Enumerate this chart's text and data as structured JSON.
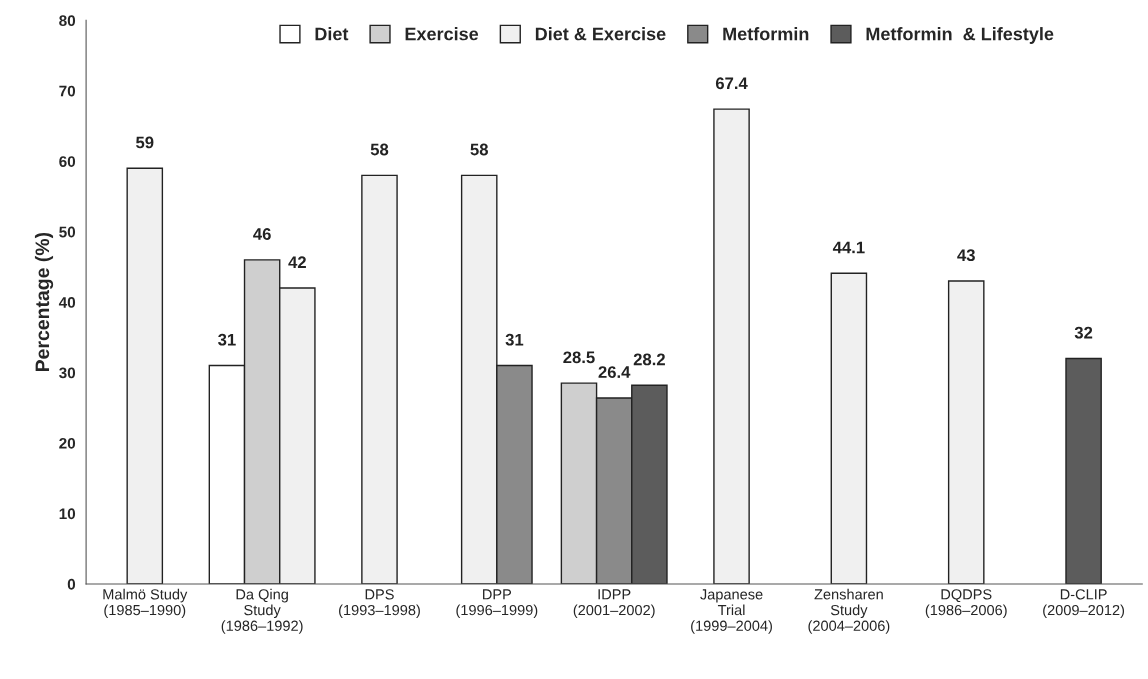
{
  "chart_data": {
    "type": "bar",
    "ylabel": "Percentage (%)",
    "categories": [
      "Malmö Study\n(1985–1990)",
      "Da Qing\nStudy\n(1986–1992)",
      "DPS\n(1993–1998)",
      "DPP\n(1996–1999)",
      "IDPP\n(2001–2002)",
      "Japanese\nTrial\n(1999–2004)",
      "Zensharen\nStudy\n(2004–2006)",
      "DQDPS\n(1986–2006)",
      "D-CLIP\n(2009–2012)"
    ],
    "series": [
      {
        "name": "Diet",
        "color": "#ffffff",
        "values": [
          null,
          31,
          null,
          null,
          null,
          null,
          null,
          null,
          null
        ]
      },
      {
        "name": "Exercise",
        "color": "#cfcfcf",
        "values": [
          null,
          46,
          null,
          null,
          28.5,
          null,
          null,
          null,
          null
        ]
      },
      {
        "name": "Diet & Exercise",
        "color": "#f0f0f0",
        "values": [
          59,
          42,
          58,
          58,
          null,
          67.4,
          44.1,
          43,
          null
        ]
      },
      {
        "name": "Metformin",
        "color": "#8a8a8a",
        "values": [
          null,
          null,
          null,
          31,
          26.4,
          null,
          null,
          null,
          null
        ]
      },
      {
        "name": "Metformin  & Lifestyle",
        "color": "#5c5c5c",
        "values": [
          null,
          null,
          null,
          null,
          28.2,
          null,
          null,
          null,
          32
        ]
      }
    ],
    "ylim": [
      0,
      80
    ],
    "yticks": [
      0,
      10,
      20,
      30,
      40,
      50,
      60,
      70,
      80
    ],
    "data_labels": true,
    "legend": "top",
    "grid": false
  }
}
